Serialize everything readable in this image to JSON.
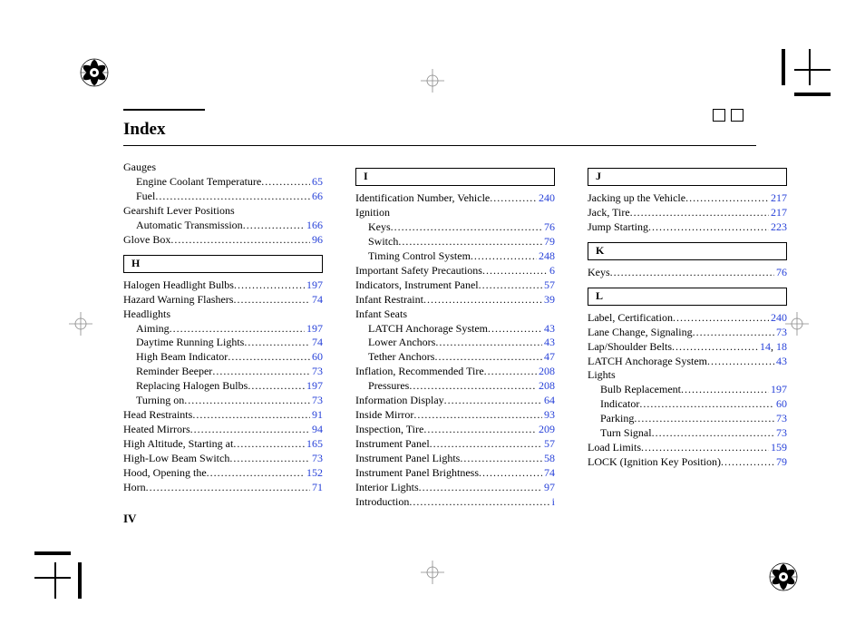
{
  "title": "Index",
  "page_number": "IV",
  "link_color": "#2640d8",
  "columns": [
    {
      "blocks": [
        {
          "type": "group",
          "label": "Gauges"
        },
        {
          "type": "sub",
          "label": "Engine Coolant Temperature",
          "page": "65"
        },
        {
          "type": "sub",
          "label": "Fuel",
          "page": "66"
        },
        {
          "type": "group",
          "label": "Gearshift Lever Positions"
        },
        {
          "type": "sub",
          "label": "Automatic Transmission",
          "page": "166"
        },
        {
          "type": "entry",
          "label": "Glove Box",
          "page": "96"
        },
        {
          "type": "letter",
          "label": "H"
        },
        {
          "type": "entry",
          "label": "Halogen Headlight Bulbs",
          "page": "197"
        },
        {
          "type": "entry",
          "label": "Hazard Warning Flashers",
          "page": "74"
        },
        {
          "type": "group",
          "label": "Headlights"
        },
        {
          "type": "sub",
          "label": "Aiming",
          "page": "197"
        },
        {
          "type": "sub",
          "label": "Daytime Running Lights",
          "page": "74"
        },
        {
          "type": "sub",
          "label": "High Beam Indicator",
          "page": "60"
        },
        {
          "type": "sub",
          "label": "Reminder Beeper",
          "page": "73"
        },
        {
          "type": "sub",
          "label": "Replacing Halogen Bulbs",
          "page": "197"
        },
        {
          "type": "sub",
          "label": "Turning on",
          "page": "73"
        },
        {
          "type": "entry",
          "label": "Head Restraints",
          "page": "91"
        },
        {
          "type": "entry",
          "label": "Heated Mirrors",
          "page": "94"
        },
        {
          "type": "entry",
          "label": "High Altitude, Starting at",
          "page": "165"
        },
        {
          "type": "entry",
          "label": "High-Low Beam Switch",
          "page": "73"
        },
        {
          "type": "entry",
          "label": "Hood, Opening the",
          "page": "152"
        },
        {
          "type": "entry",
          "label": "Horn",
          "page": "71"
        }
      ]
    },
    {
      "blocks": [
        {
          "type": "letter",
          "label": "I"
        },
        {
          "type": "entry",
          "label": "Identification Number, Vehicle",
          "page": "240"
        },
        {
          "type": "group",
          "label": "Ignition"
        },
        {
          "type": "sub",
          "label": "Keys",
          "page": "76"
        },
        {
          "type": "sub",
          "label": "Switch",
          "page": "79"
        },
        {
          "type": "sub",
          "label": "Timing Control System",
          "page": "248"
        },
        {
          "type": "entry",
          "label": "Important Safety Precautions",
          "page": "6"
        },
        {
          "type": "entry",
          "label": "Indicators, Instrument Panel",
          "page": "57"
        },
        {
          "type": "entry",
          "label": "Infant Restraint",
          "page": "39"
        },
        {
          "type": "group",
          "label": "Infant Seats"
        },
        {
          "type": "sub",
          "label": "LATCH Anchorage System",
          "page": "43"
        },
        {
          "type": "sub",
          "label": "Lower Anchors",
          "page": "43"
        },
        {
          "type": "sub",
          "label": "Tether Anchors",
          "page": "47"
        },
        {
          "type": "entry",
          "label": "Inflation, Recommended Tire",
          "page": "208"
        },
        {
          "type": "sub",
          "label": "Pressures",
          "page": "208"
        },
        {
          "type": "entry",
          "label": "Information Display",
          "page": "64"
        },
        {
          "type": "entry",
          "label": "Inside Mirror",
          "page": "93"
        },
        {
          "type": "entry",
          "label": "Inspection, Tire",
          "page": "209"
        },
        {
          "type": "entry",
          "label": "Instrument Panel",
          "page": "57"
        },
        {
          "type": "entry",
          "label": "Instrument Panel Lights",
          "page": "58"
        },
        {
          "type": "entry",
          "label": "Instrument Panel Brightness",
          "page": "74"
        },
        {
          "type": "entry",
          "label": "Interior Lights",
          "page": "97"
        },
        {
          "type": "entry",
          "label": "Introduction",
          "page": "i"
        }
      ]
    },
    {
      "blocks": [
        {
          "type": "letter",
          "label": "J"
        },
        {
          "type": "entry",
          "label": "Jacking up the Vehicle",
          "page": "217"
        },
        {
          "type": "entry",
          "label": "Jack, Tire",
          "page": "217"
        },
        {
          "type": "entry",
          "label": "Jump Starting",
          "page": "223"
        },
        {
          "type": "letter",
          "label": "K"
        },
        {
          "type": "entry",
          "label": "Keys",
          "page": "76"
        },
        {
          "type": "letter",
          "label": "L"
        },
        {
          "type": "entry",
          "label": "Label, Certification",
          "page": "240"
        },
        {
          "type": "entry",
          "label": "Lane Change, Signaling",
          "page": "73"
        },
        {
          "type": "entry",
          "label": "Lap/Shoulder Belts",
          "page": "14",
          "page2": "18"
        },
        {
          "type": "entry",
          "label": "LATCH Anchorage System",
          "page": "43"
        },
        {
          "type": "group",
          "label": "Lights"
        },
        {
          "type": "sub",
          "label": "Bulb Replacement",
          "page": "197"
        },
        {
          "type": "sub",
          "label": "Indicator",
          "page": "60"
        },
        {
          "type": "sub",
          "label": "Parking",
          "page": "73"
        },
        {
          "type": "sub",
          "label": "Turn Signal",
          "page": "73"
        },
        {
          "type": "entry",
          "label": "Load Limits",
          "page": "159"
        },
        {
          "type": "entry",
          "label": "LOCK (Ignition Key Position)",
          "page": "79"
        }
      ]
    }
  ]
}
